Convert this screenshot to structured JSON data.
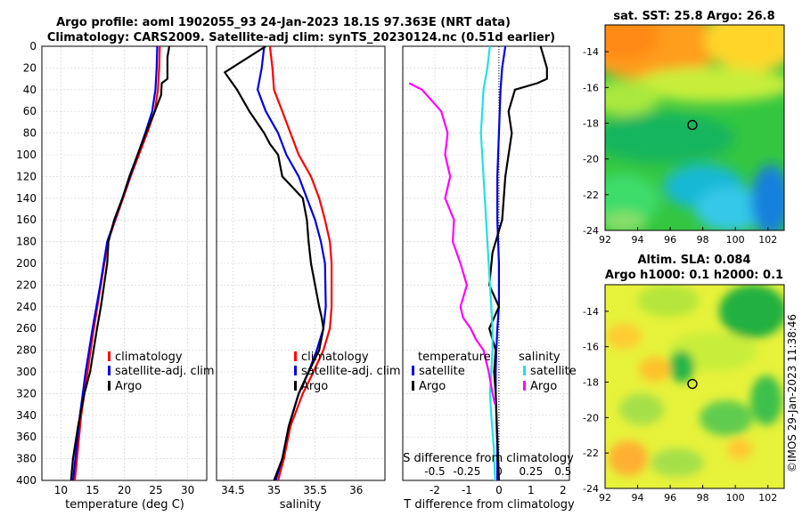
{
  "header": {
    "title_line1": "Argo profile: aoml 1902055_93 24-Jan-2023 18.1S 97.363E (NRT data)",
    "title_line2": "Climatology: CARS2009. Satellite-adj clim: synTS_20230124.nc (0.51d earlier)"
  },
  "watermark": "©IMOS 29-Jan-2023 11:38:46",
  "colors": {
    "climatology": "#ff0000",
    "satellite": "#0000e6",
    "argo": "#000000",
    "sat_salinity": "#22e0e6",
    "argo_salinity_diff": "#ff00ff"
  },
  "chart_data": [
    {
      "type": "line",
      "id": "temperature",
      "xlabel": "temperature (deg C)",
      "ylabel": "",
      "xlim": [
        7,
        33
      ],
      "ylim": [
        0,
        400
      ],
      "y_reversed": true,
      "xticks": [
        10,
        15,
        20,
        25,
        30
      ],
      "yticks": [
        0,
        20,
        40,
        60,
        80,
        100,
        120,
        140,
        160,
        180,
        200,
        220,
        240,
        260,
        280,
        300,
        320,
        340,
        360,
        380,
        400
      ],
      "legend": [
        "climatology",
        "satellite-adj. clim",
        "Argo"
      ],
      "series": [
        {
          "name": "climatology",
          "x": [
            25.6,
            25.5,
            25.3,
            24.8,
            23.6,
            22.3,
            21.0,
            19.8,
            18.6,
            17.4,
            16.3,
            15.2,
            14.2,
            13.2,
            12.2
          ],
          "y": [
            0,
            20,
            40,
            60,
            80,
            100,
            120,
            140,
            160,
            180,
            220,
            260,
            300,
            340,
            400
          ]
        },
        {
          "name": "satellite-adj. clim",
          "x": [
            25.2,
            25.1,
            24.9,
            24.4,
            23.3,
            22.1,
            20.9,
            19.7,
            18.5,
            17.3,
            16.2,
            15.0,
            13.9,
            13.0,
            11.9
          ],
          "y": [
            0,
            20,
            40,
            60,
            80,
            100,
            120,
            140,
            160,
            180,
            220,
            260,
            300,
            340,
            400
          ]
        },
        {
          "name": "Argo",
          "x": [
            27.1,
            26.8,
            26.8,
            25.9,
            25.8,
            24.8,
            23.4,
            22.1,
            20.8,
            19.7,
            18.4,
            17.5,
            17.3,
            16.3,
            15.7,
            14.6,
            13.7,
            12.7,
            11.9,
            11.6
          ],
          "y": [
            0,
            10,
            30,
            34,
            45,
            60,
            80,
            100,
            120,
            140,
            160,
            180,
            200,
            240,
            260,
            300,
            320,
            350,
            380,
            400
          ]
        }
      ]
    },
    {
      "type": "line",
      "id": "salinity",
      "xlabel": "salinity",
      "ylabel": "",
      "xlim": [
        34.3,
        36.35
      ],
      "ylim": [
        0,
        400
      ],
      "y_reversed": true,
      "xticks": [
        34.5,
        35,
        35.5,
        36
      ],
      "xtick_labels": [
        "34.5",
        "35",
        "35.5",
        "36"
      ],
      "legend": [
        "climatology",
        "satellite-adj. clim",
        "Argo"
      ],
      "series": [
        {
          "name": "climatology",
          "x": [
            34.95,
            34.98,
            35.0,
            35.1,
            35.2,
            35.3,
            35.45,
            35.55,
            35.62,
            35.68,
            35.7,
            35.7,
            35.68,
            35.6,
            35.48,
            35.35,
            35.2,
            35.12,
            35.05
          ],
          "y": [
            0,
            20,
            40,
            60,
            80,
            100,
            120,
            140,
            160,
            180,
            200,
            240,
            260,
            280,
            300,
            320,
            350,
            380,
            400
          ]
        },
        {
          "name": "satellite-adj. clim",
          "x": [
            34.88,
            34.85,
            34.8,
            34.9,
            35.05,
            35.15,
            35.3,
            35.4,
            35.5,
            35.57,
            35.62,
            35.63,
            35.6,
            35.52,
            35.42,
            35.3,
            35.18,
            35.1,
            35.02
          ],
          "y": [
            0,
            20,
            40,
            60,
            80,
            100,
            120,
            140,
            160,
            180,
            200,
            240,
            260,
            280,
            300,
            320,
            350,
            380,
            400
          ]
        },
        {
          "name": "Argo",
          "x": [
            34.9,
            34.4,
            34.55,
            34.7,
            34.88,
            34.95,
            35.05,
            35.1,
            35.35,
            35.4,
            35.42,
            35.45,
            35.5,
            35.55,
            35.58,
            35.6,
            35.55,
            35.42,
            35.3,
            35.18,
            35.1,
            35.0
          ],
          "y": [
            0,
            24,
            40,
            60,
            80,
            90,
            100,
            120,
            140,
            160,
            180,
            200,
            220,
            240,
            250,
            260,
            280,
            300,
            320,
            350,
            380,
            400
          ]
        }
      ]
    },
    {
      "type": "line",
      "id": "differences",
      "xlabel": "T difference from climatology",
      "xlabel_top": "S difference from climatology",
      "xlim": [
        -3,
        2.2
      ],
      "ylim": [
        0,
        400
      ],
      "y_reversed": true,
      "xticks": [
        -2,
        -1,
        0,
        1,
        2
      ],
      "s_xlim": [
        -0.75,
        0.55
      ],
      "s_ticks": [
        "-0.5",
        "-0.25",
        "0",
        "0.25",
        "0.5"
      ],
      "s_tick_values": [
        -0.5,
        -0.25,
        0,
        0.25,
        0.5
      ],
      "legend_t_title": "temperature",
      "legend_s_title": "salinity",
      "legend": [
        "satellite",
        "Argo",
        "satellite",
        "Argo"
      ],
      "series": [
        {
          "name": "T satellite",
          "axis": "T",
          "x": [
            0.2,
            0.1,
            0.05,
            0.0,
            -0.05,
            -0.05,
            0.0,
            0.0,
            -0.05,
            -0.08,
            -0.1,
            -0.1,
            -0.08,
            -0.05,
            -0.05
          ],
          "y": [
            0,
            20,
            40,
            80,
            120,
            160,
            200,
            240,
            260,
            280,
            300,
            320,
            340,
            370,
            400
          ]
        },
        {
          "name": "T Argo",
          "axis": "T",
          "x": [
            1.3,
            1.5,
            1.5,
            1.2,
            0.5,
            0.3,
            0.4,
            0.3,
            0.2,
            0.1,
            -0.2,
            -0.3,
            0.0,
            -0.3,
            -0.1,
            -0.15,
            -0.1,
            -0.05,
            0.0
          ],
          "y": [
            0,
            20,
            30,
            34,
            40,
            60,
            80,
            100,
            120,
            160,
            190,
            220,
            240,
            260,
            280,
            300,
            320,
            360,
            400
          ]
        },
        {
          "name": "S satellite",
          "axis": "S",
          "x": [
            -0.07,
            -0.09,
            -0.12,
            -0.14,
            -0.12,
            -0.1,
            -0.08,
            -0.06,
            -0.05,
            -0.05,
            -0.06,
            -0.07,
            -0.06,
            -0.04,
            -0.03
          ],
          "y": [
            0,
            20,
            40,
            80,
            120,
            160,
            200,
            240,
            260,
            280,
            300,
            320,
            340,
            370,
            400
          ]
        },
        {
          "name": "S Argo",
          "axis": "S",
          "x": [
            -0.7,
            -0.6,
            -0.45,
            -0.4,
            -0.42,
            -0.38,
            -0.42,
            -0.35,
            -0.36,
            -0.3,
            -0.25,
            -0.3,
            -0.28,
            -0.22,
            -0.18,
            -0.12,
            -0.08,
            -0.05,
            -0.03
          ],
          "y": [
            34,
            40,
            60,
            80,
            100,
            120,
            140,
            160,
            180,
            200,
            220,
            240,
            250,
            260,
            270,
            280,
            300,
            320,
            330
          ]
        }
      ]
    },
    {
      "type": "heatmap",
      "id": "sst_map",
      "title": "sat. SST: 25.8 Argo: 26.8",
      "xlim": [
        92,
        103
      ],
      "ylim": [
        -24,
        -12.5
      ],
      "xticks": [
        92,
        94,
        96,
        98,
        100,
        102
      ],
      "yticks": [
        -24,
        -22,
        -20,
        -18,
        -16,
        -14
      ],
      "marker": {
        "lon": 97.363,
        "lat": -18.1
      }
    },
    {
      "type": "heatmap",
      "id": "sla_map",
      "title_line1": "Altim. SLA: 0.084",
      "title_line2": "Argo h1000: 0.1 h2000: 0.1",
      "xlim": [
        92,
        103
      ],
      "ylim": [
        -24,
        -12.5
      ],
      "xticks": [
        92,
        94,
        96,
        98,
        100,
        102
      ],
      "yticks": [
        -24,
        -22,
        -20,
        -18,
        -16,
        -14
      ],
      "marker": {
        "lon": 97.363,
        "lat": -18.1
      }
    }
  ]
}
